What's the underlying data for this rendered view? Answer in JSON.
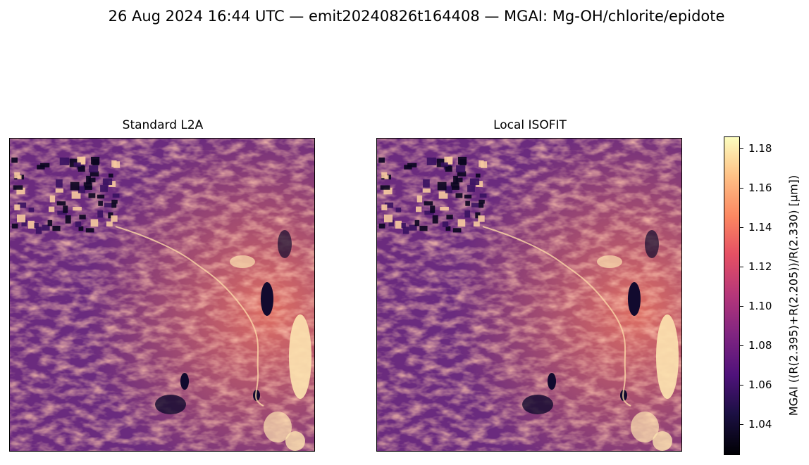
{
  "suptitle": "26 Aug 2024 16:44 UTC — emit20240826t164408 — MGAI: Mg-OH/chlorite/epidote",
  "chart_data": {
    "type": "heatmap",
    "colormap": "magma",
    "panels": [
      {
        "title": "Standard L2A"
      },
      {
        "title": "Local ISOFIT"
      }
    ],
    "colorbar": {
      "label": "MGAI  ((R(2.395)+R(2.205))/R(2.330)  [µm])",
      "vmin": 1.025,
      "vmax": 1.186,
      "ticks": [
        "1.04",
        "1.06",
        "1.08",
        "1.10",
        "1.12",
        "1.14",
        "1.16",
        "1.18"
      ],
      "tick_values": [
        1.04,
        1.06,
        1.08,
        1.1,
        1.12,
        1.14,
        1.16,
        1.18
      ]
    }
  }
}
